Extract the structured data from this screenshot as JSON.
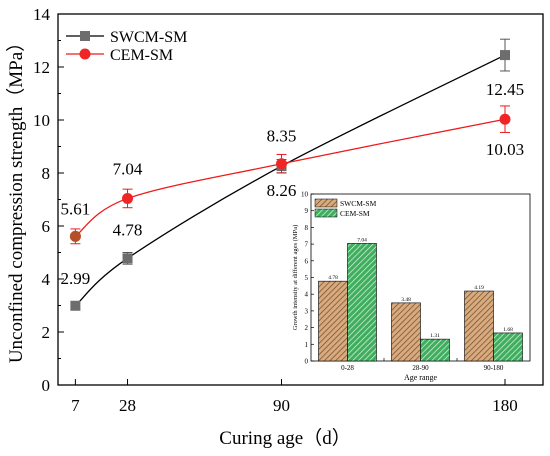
{
  "chart_data": [
    {
      "type": "line",
      "xlabel": "Curing age（d）",
      "ylabel": "Unconfined compression strength（MPa）",
      "x": [
        7,
        28,
        90,
        180
      ],
      "x_ticks": [
        "7",
        "28",
        "90",
        "180"
      ],
      "ylim": [
        0,
        14
      ],
      "y_ticks": [
        "0",
        "2",
        "4",
        "6",
        "8",
        "10",
        "12",
        "14"
      ],
      "legend_position": "top-left",
      "series": [
        {
          "name": "SWCM-SM",
          "color": "#000000",
          "marker_color": "#6d6d6d",
          "marker": "square",
          "values": [
            2.99,
            4.78,
            8.26,
            12.45
          ],
          "labels": [
            "2.99",
            "4.78",
            "8.26",
            "12.45"
          ],
          "errors": [
            0.0,
            0.22,
            0.25,
            0.6
          ]
        },
        {
          "name": "CEM-SM",
          "color": "#ef1a1a",
          "marker_color": "#ef2626",
          "marker": "circle",
          "values": [
            5.61,
            7.04,
            8.35,
            10.03
          ],
          "labels": [
            "5.61",
            "7.04",
            "8.35",
            "10.03"
          ],
          "errors": [
            0.28,
            0.35,
            0.35,
            0.5
          ]
        }
      ]
    },
    {
      "type": "bar",
      "xlabel": "Age range",
      "ylabel": "Growth intensity at different ages (MPa)",
      "categories": [
        "0-28",
        "28-90",
        "90-180"
      ],
      "ylim": [
        0,
        10
      ],
      "y_ticks": [
        "0",
        "1",
        "2",
        "3",
        "4",
        "5",
        "6",
        "7",
        "8",
        "9",
        "10"
      ],
      "legend_position": "top-left",
      "series": [
        {
          "name": "SWCM-SM",
          "color": "#d2a679",
          "hatch": "diagonal",
          "values": [
            4.78,
            3.48,
            4.19
          ],
          "labels": [
            "4.78",
            "3.48",
            "4.19"
          ]
        },
        {
          "name": "CEM-SM",
          "color": "#3aa85a",
          "hatch": "diagonal",
          "values": [
            7.04,
            1.31,
            1.68
          ],
          "labels": [
            "7.04",
            "1.31",
            "1.68"
          ]
        }
      ]
    }
  ]
}
